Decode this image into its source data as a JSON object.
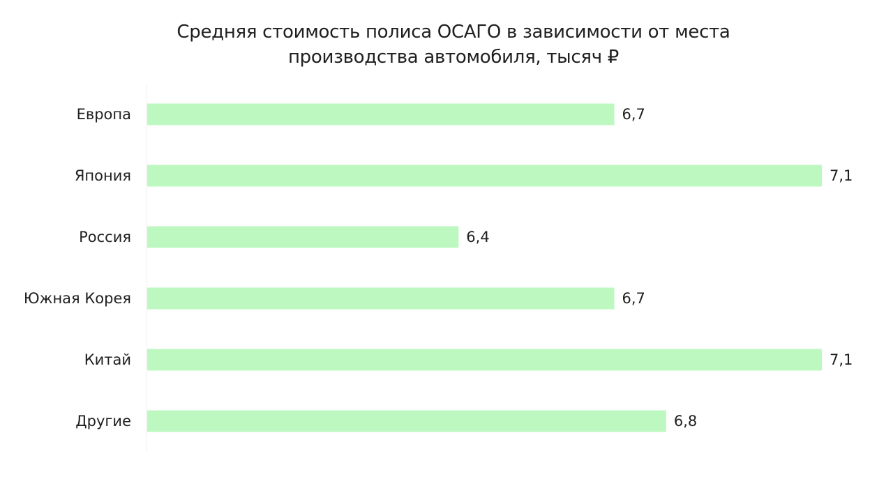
{
  "chart_data": {
    "type": "bar",
    "orientation": "horizontal",
    "title_lines": [
      "Средняя стоимость полиса ОСАГО в зависимости от места",
      "производства автомобиля, тысяч ₽"
    ],
    "categories": [
      "Европа",
      "Япония",
      "Россия",
      "Южная Корея",
      "Китай",
      "Другие"
    ],
    "values": [
      6.7,
      7.1,
      6.4,
      6.7,
      7.1,
      6.8
    ],
    "value_labels": [
      "6,7",
      "7,1",
      "6,4",
      "6,7",
      "7,1",
      "6,8"
    ],
    "xlim": [
      5.8,
      7.1
    ],
    "grid": false,
    "legend": "none",
    "colors": {
      "bar": "#bdf8c0",
      "axis": "#f0f0f0",
      "text": "#1f1f1f"
    }
  }
}
